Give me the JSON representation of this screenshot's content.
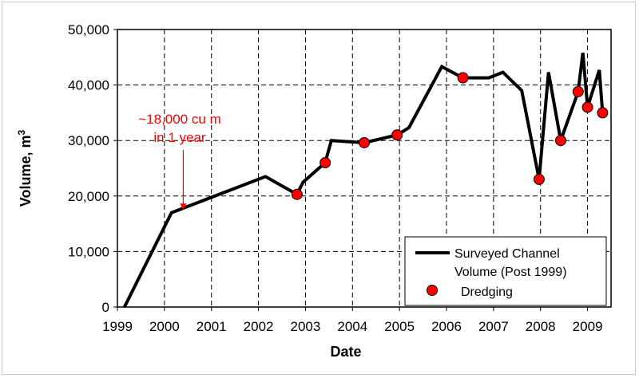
{
  "chart_data": {
    "type": "line",
    "xlabel": "Date",
    "ylabel": "Volume, m",
    "ylabel_sup": "3",
    "xlim": [
      1999,
      2009.5
    ],
    "ylim": [
      0,
      50000
    ],
    "x_ticks": [
      1999,
      2000,
      2001,
      2002,
      2003,
      2004,
      2005,
      2006,
      2007,
      2008,
      2009
    ],
    "x_tick_labels": [
      "1999",
      "2000",
      "2001",
      "2002",
      "2003",
      "2004",
      "2005",
      "2006",
      "2007",
      "2008",
      "2009"
    ],
    "y_ticks": [
      0,
      10000,
      20000,
      30000,
      40000,
      50000
    ],
    "y_tick_labels": [
      "0",
      "10,000",
      "20,000",
      "30,000",
      "40,000",
      "50,000"
    ],
    "grid": "dashed",
    "legend_position": "bottom-right",
    "series": [
      {
        "name": "Surveyed Channel Volume (Post 1999)",
        "style": "line",
        "color": "#000000",
        "points": [
          [
            1999.15,
            0
          ],
          [
            2000.15,
            17000
          ],
          [
            2002.15,
            23500
          ],
          [
            2002.82,
            20300
          ],
          [
            2002.95,
            22500
          ],
          [
            2003.42,
            26000
          ],
          [
            2003.55,
            30000
          ],
          [
            2004.25,
            29600
          ],
          [
            2004.95,
            31000
          ],
          [
            2005.2,
            32300
          ],
          [
            2005.9,
            43300
          ],
          [
            2006.35,
            41300
          ],
          [
            2006.9,
            41300
          ],
          [
            2007.2,
            42300
          ],
          [
            2007.6,
            39000
          ],
          [
            2007.97,
            23000
          ],
          [
            2008.17,
            42300
          ],
          [
            2008.43,
            30000
          ],
          [
            2008.8,
            38800
          ],
          [
            2008.9,
            45800
          ],
          [
            2009.0,
            36000
          ],
          [
            2009.25,
            42700
          ],
          [
            2009.32,
            35000
          ]
        ]
      },
      {
        "name": "Dredging",
        "style": "marker",
        "color": "#ff0000",
        "points": [
          [
            2002.82,
            20300
          ],
          [
            2003.42,
            26000
          ],
          [
            2004.25,
            29600
          ],
          [
            2004.95,
            31000
          ],
          [
            2006.35,
            41300
          ],
          [
            2007.97,
            23000
          ],
          [
            2008.43,
            30000
          ],
          [
            2008.8,
            38800
          ],
          [
            2009.0,
            36000
          ],
          [
            2009.32,
            35000
          ]
        ]
      }
    ],
    "legend": {
      "line_label_1": "Surveyed Channel",
      "line_label_2": "Volume (Post 1999)",
      "marker_label": "Dredging"
    },
    "annotation": {
      "line1": "~18,000 cu m",
      "line2": "in 1 year",
      "arrow_x": 2000.4,
      "arrow_y": 17500
    }
  }
}
